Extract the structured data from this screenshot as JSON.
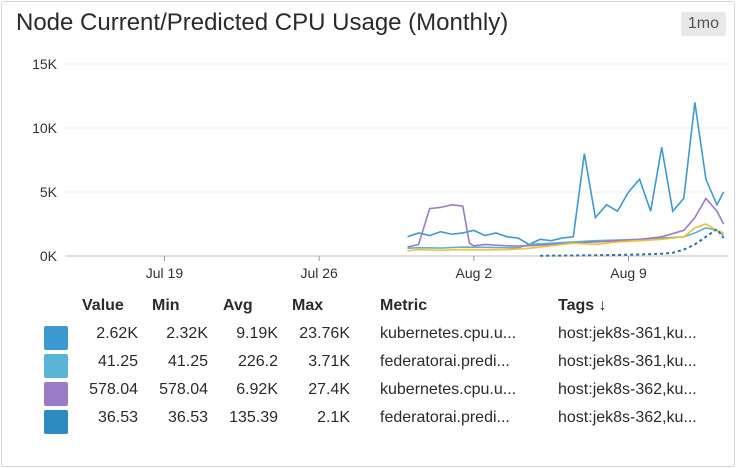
{
  "widget": {
    "title": "Node Current/Predicted CPU Usage (Monthly)",
    "timeframe_badge": "1mo"
  },
  "chart_data": {
    "type": "line",
    "title": "Node Current/Predicted CPU Usage (Monthly)",
    "y_ticks": [
      "15K",
      "10K",
      "5K",
      "0K"
    ],
    "x_ticks": [
      "Jul 19",
      "Jul 26",
      "Aug 2",
      "Aug 9"
    ],
    "ylim": [
      0,
      15000
    ],
    "x_range_days": [
      0,
      30
    ],
    "x_tick_days": [
      4.5,
      11.5,
      18.5,
      25.5
    ],
    "grid": true,
    "series": [
      {
        "color": "#3d9ad1",
        "x": [
          15.5,
          16,
          16.5,
          17,
          17.5,
          18,
          18.5,
          19,
          19.5,
          20,
          20.5,
          21,
          21.5,
          22,
          22.5,
          23,
          23.5,
          24,
          24.5,
          25,
          25.5,
          26,
          26.5,
          27,
          27.5,
          28,
          28.5,
          29,
          29.5,
          29.8
        ],
        "y": [
          1500,
          1800,
          1600,
          1900,
          1700,
          1800,
          2000,
          1600,
          1800,
          1500,
          1400,
          900,
          1300,
          1200,
          1400,
          1500,
          8000,
          3000,
          4000,
          3500,
          5000,
          6000,
          3500,
          8500,
          3500,
          4500,
          12000,
          6000,
          4000,
          5000
        ]
      },
      {
        "color": "#5ab4d6",
        "x": [
          15.5,
          16,
          17,
          18,
          19,
          20,
          20.5,
          21,
          22,
          23,
          24,
          25,
          26,
          27,
          28,
          28.5,
          29,
          29.5,
          29.8
        ],
        "y": [
          600,
          650,
          620,
          700,
          680,
          650,
          640,
          900,
          1000,
          1100,
          1200,
          1250,
          1300,
          1400,
          1500,
          1800,
          2200,
          2000,
          1600
        ]
      },
      {
        "color": "#9a7cc4",
        "x": [
          15.5,
          16,
          16.5,
          17,
          17.5,
          18,
          18.3,
          18.5,
          19,
          19.5,
          20,
          20.5,
          21,
          22,
          23,
          24,
          25,
          26,
          27,
          28,
          28.5,
          29,
          29.5,
          29.8
        ],
        "y": [
          700,
          900,
          3700,
          3800,
          4000,
          3900,
          1000,
          800,
          900,
          850,
          800,
          780,
          800,
          900,
          1000,
          1100,
          1200,
          1300,
          1500,
          2000,
          3000,
          4500,
          3500,
          2500
        ]
      },
      {
        "color": "#f2c12e",
        "x": [
          15.5,
          16,
          17,
          18,
          19,
          20,
          21,
          22,
          23,
          24,
          25,
          26,
          27,
          28,
          28.5,
          29,
          29.5,
          29.8
        ],
        "y": [
          400,
          500,
          450,
          500,
          480,
          500,
          600,
          800,
          1000,
          900,
          1100,
          1200,
          1300,
          1500,
          2200,
          2500,
          2000,
          1800
        ]
      },
      {
        "color": "#2e6fa8",
        "dashed": true,
        "x": [
          21.5,
          23,
          24,
          25,
          26,
          27,
          27.5,
          28,
          28.5,
          29,
          29.5,
          29.8
        ],
        "y": [
          20,
          40,
          60,
          80,
          120,
          180,
          250,
          500,
          900,
          1500,
          2100,
          1400
        ]
      }
    ]
  },
  "legend": {
    "headers": {
      "value": "Value",
      "min": "Min",
      "avg": "Avg",
      "max": "Max",
      "metric": "Metric",
      "tags": "Tags ↓"
    },
    "rows": [
      {
        "color": "#3d9ad1",
        "value": "2.62K",
        "min": "2.32K",
        "avg": "9.19K",
        "max": "23.76K",
        "metric": "kubernetes.cpu.u...",
        "tags": "host:jek8s-361,ku..."
      },
      {
        "color": "#5ab4d6",
        "value": "41.25",
        "min": "41.25",
        "avg": "226.2",
        "max": "3.71K",
        "metric": "federatorai.predi...",
        "tags": "host:jek8s-361,ku..."
      },
      {
        "color": "#9a7cc4",
        "value": "578.04",
        "min": "578.04",
        "avg": "6.92K",
        "max": "27.4K",
        "metric": "kubernetes.cpu.u...",
        "tags": "host:jek8s-362,ku..."
      },
      {
        "color": "#2e8bc0",
        "value": "36.53",
        "min": "36.53",
        "avg": "135.39",
        "max": "2.1K",
        "metric": "federatorai.predi...",
        "tags": "host:jek8s-362,ku..."
      }
    ]
  }
}
